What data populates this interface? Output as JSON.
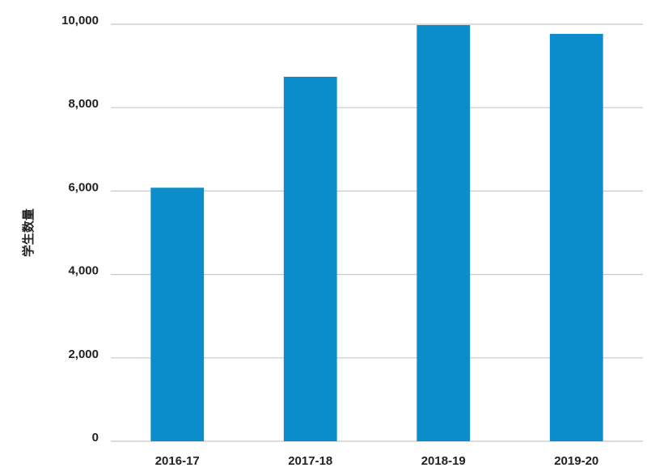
{
  "chart_data": {
    "type": "bar",
    "y_label": "学生数量",
    "categories": [
      "2016-17",
      "2017-18",
      "2018-19",
      "2019-20"
    ],
    "values": [
      6080,
      8740,
      9980,
      9770
    ],
    "color": "#0b8dcb",
    "ylim": [
      0,
      10000
    ],
    "yticks": [
      0,
      {
        "value": 2000,
        "label": "2,000"
      },
      {
        "value": 4000,
        "label": "4,000"
      },
      {
        "value": 6000,
        "label": "6,000"
      },
      {
        "value": 8000,
        "label": "8,000"
      },
      {
        "value": 10000,
        "label": "10,000"
      }
    ],
    "grid": true
  }
}
